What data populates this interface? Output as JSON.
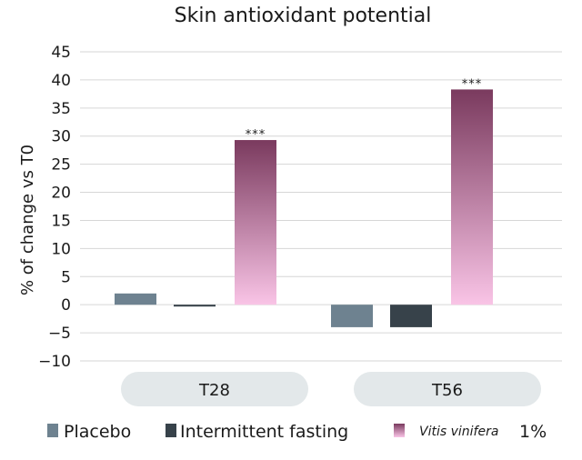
{
  "chart_data": {
    "type": "bar",
    "title": "Skin antioxidant potential",
    "ylabel": "% of change vs T0",
    "xlabel": "",
    "categories": [
      "T28",
      "T56"
    ],
    "ylim": [
      -10,
      45
    ],
    "yticks": [
      45,
      40,
      35,
      30,
      25,
      20,
      15,
      10,
      5,
      0,
      -5,
      -10
    ],
    "ytick_labels": [
      "45",
      "40",
      "35",
      "30",
      "25",
      "20",
      "15",
      "10",
      "5",
      "0",
      "−5",
      "−10"
    ],
    "grid": true,
    "legend_position": "bottom",
    "series": [
      {
        "name": "Placebo",
        "values": [
          2.0,
          -4.0
        ],
        "color": "#6e8290"
      },
      {
        "name": "Intermittent fasting",
        "values": [
          -0.2,
          -4.0
        ],
        "color": "#37424a"
      },
      {
        "name": "Vitis vinifera",
        "name_suffix": "1%",
        "values": [
          29.3,
          38.3
        ],
        "color_top": "#7a3a5e",
        "color_bottom": "#f9c4e6"
      }
    ],
    "annotations": [
      {
        "category": "T28",
        "series": "Vitis vinifera",
        "text": "***"
      },
      {
        "category": "T56",
        "series": "Vitis vinifera",
        "text": "***"
      }
    ]
  }
}
